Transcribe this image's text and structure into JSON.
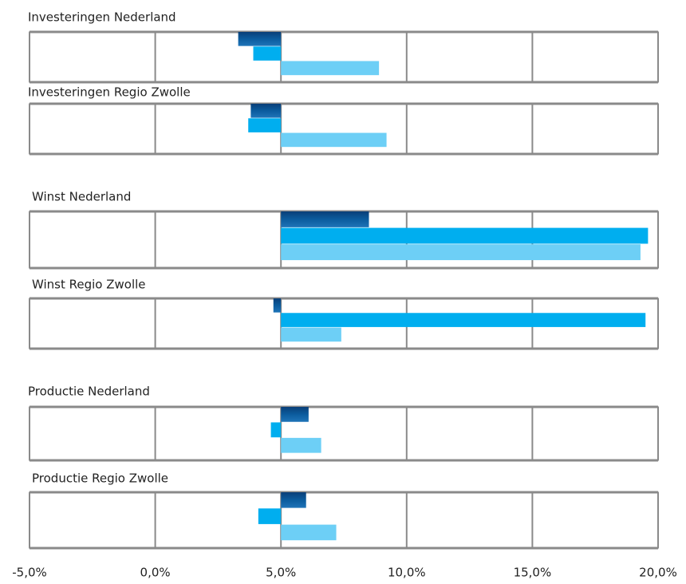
{
  "chart_data": {
    "type": "bar",
    "orientation": "horizontal",
    "xlim": [
      -5,
      20
    ],
    "xticks": [
      {
        "value": -5,
        "label": "-5,0%"
      },
      {
        "value": 0,
        "label": "0,0%"
      },
      {
        "value": 5,
        "label": "5,0%"
      },
      {
        "value": 10,
        "label": "10,0%"
      },
      {
        "value": 15,
        "label": "15,0%"
      },
      {
        "value": 20,
        "label": "20,0%"
      }
    ],
    "baseline": 5,
    "grid": true,
    "colors": [
      "#0b5c9e",
      "#00aeef",
      "#6dcff6"
    ],
    "panels": [
      {
        "title": "Investeringen Nederland",
        "values": [
          3.3,
          3.9,
          8.9
        ]
      },
      {
        "title": "Investeringen Regio Zwolle",
        "values": [
          3.8,
          3.7,
          9.2
        ]
      },
      {
        "title": "Winst Nederland",
        "values": [
          8.5,
          19.6,
          19.3
        ]
      },
      {
        "title": "Winst Regio Zwolle",
        "values": [
          4.7,
          19.5,
          7.4
        ]
      },
      {
        "title": "Productie Nederland",
        "values": [
          6.1,
          4.6,
          6.6
        ]
      },
      {
        "title": "Productie Regio Zwolle",
        "values": [
          6.0,
          4.1,
          7.2
        ]
      }
    ]
  }
}
